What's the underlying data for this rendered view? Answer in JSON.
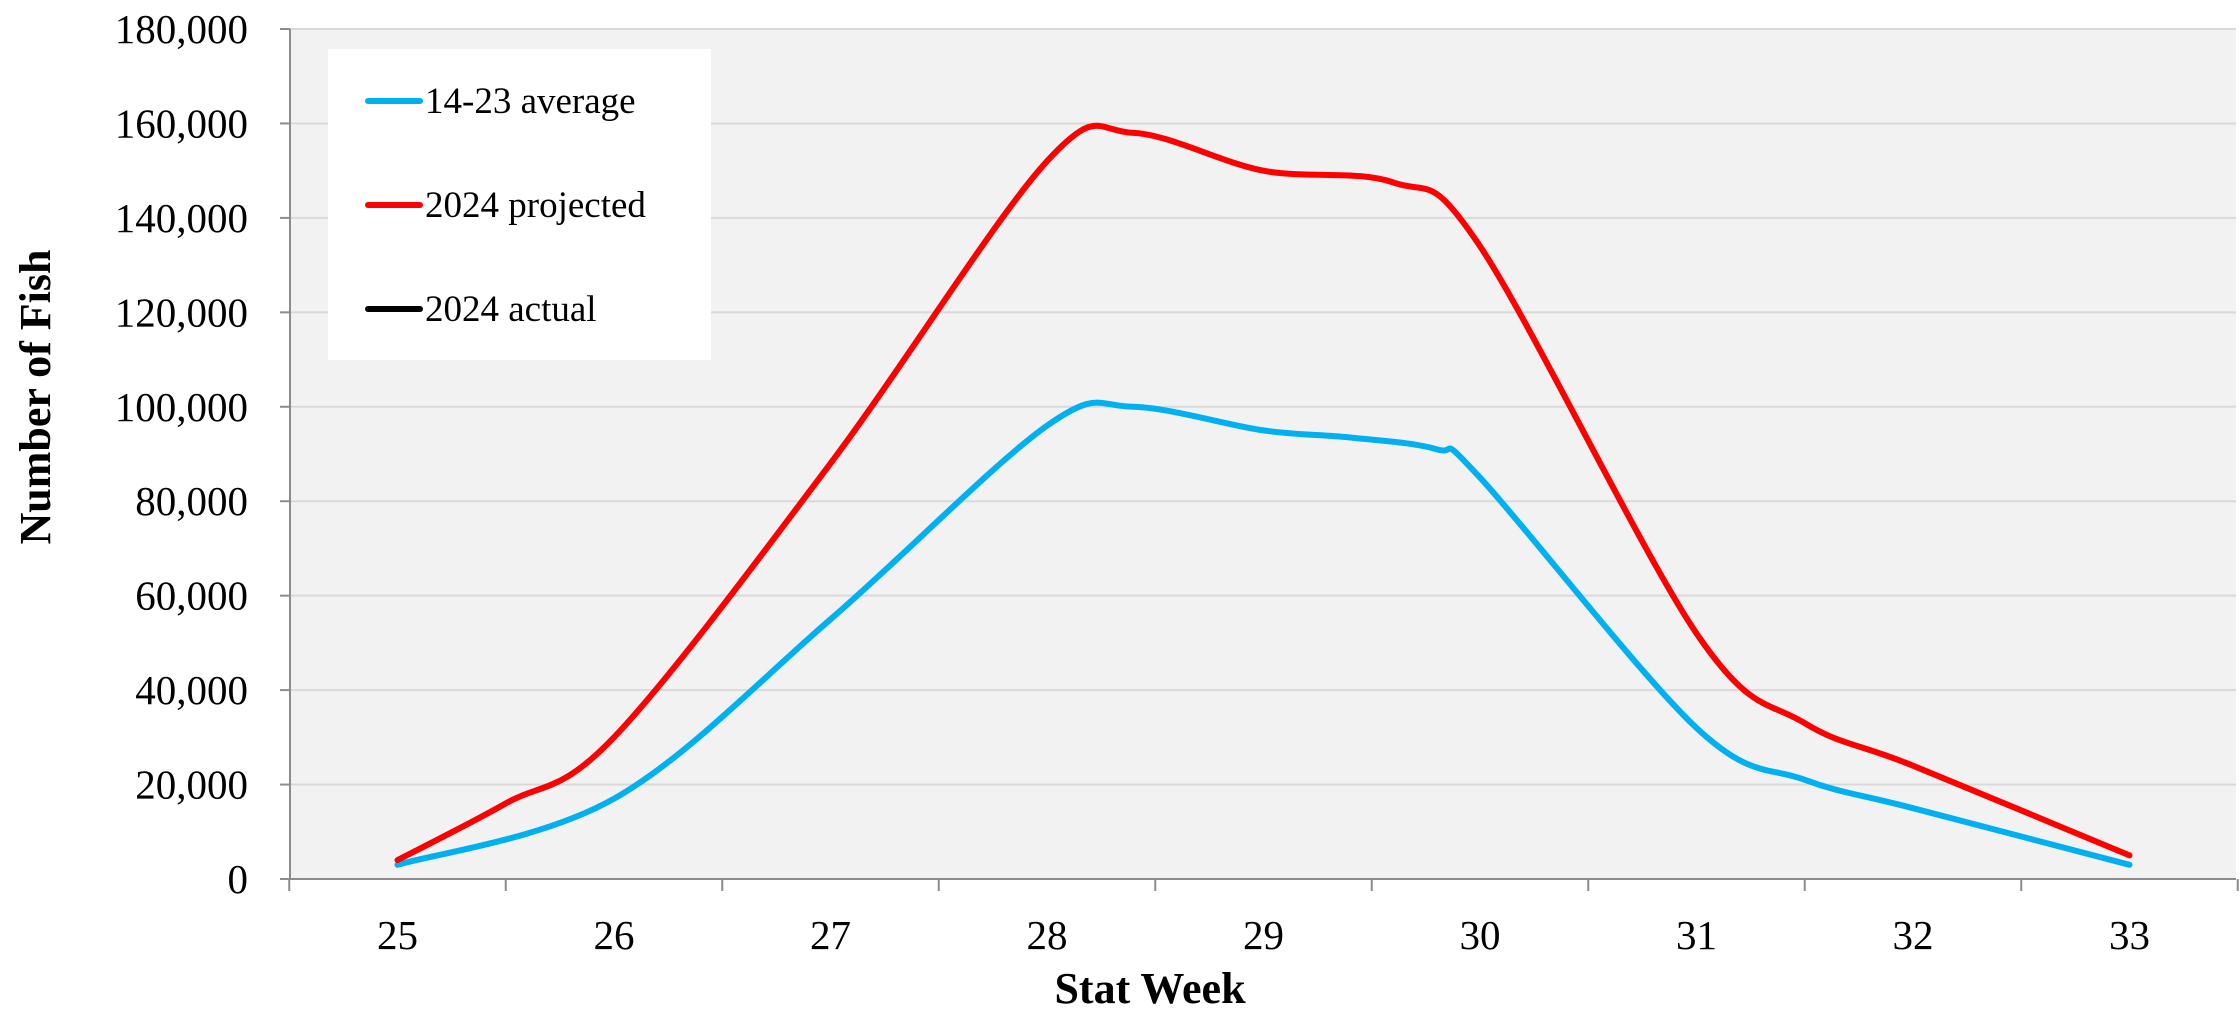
{
  "chart_data": {
    "type": "line",
    "title": "",
    "xlabel": "Stat Week",
    "ylabel": "Number of Fish",
    "categories": [
      "25",
      "26",
      "27",
      "28",
      "29",
      "30",
      "31",
      "32",
      "33"
    ],
    "y_ticks": [
      "0",
      "20,000",
      "40,000",
      "60,000",
      "80,000",
      "100,000",
      "120,000",
      "140,000",
      "160,000",
      "180,000"
    ],
    "ylim": [
      0,
      180000
    ],
    "grid": "horizontal",
    "plot_background": "#f2f2f2",
    "legend_position": "top-left",
    "series": [
      {
        "name": "14-23 average",
        "color": "#00b0f0",
        "x": [
          25,
          26,
          27,
          28,
          28.4,
          29,
          29.4,
          29.8,
          30,
          31,
          31.5,
          32,
          33
        ],
        "values": [
          3000,
          17000,
          55000,
          96000,
          100000,
          95000,
          93500,
          91000,
          85000,
          32000,
          21000,
          15000,
          3000
        ]
      },
      {
        "name": "2024 projected",
        "color": "#ff0000",
        "x": [
          25,
          25.5,
          26,
          27,
          28,
          28.4,
          29,
          29.6,
          30,
          31,
          31.5,
          32,
          33
        ],
        "values": [
          4000,
          16000,
          30000,
          88000,
          152000,
          158000,
          150000,
          147500,
          134000,
          52000,
          33000,
          24000,
          5000
        ]
      },
      {
        "name": "2024 actual",
        "color": "#000000",
        "x": [],
        "values": []
      }
    ]
  }
}
